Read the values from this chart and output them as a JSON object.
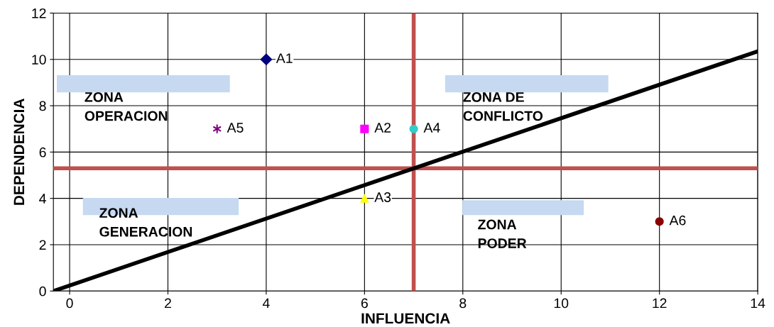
{
  "chart_data": {
    "type": "scatter",
    "xlabel": "INFLUENCIA",
    "ylabel": "DEPENDENCIA",
    "xlim": [
      -0.33,
      14
    ],
    "xticks": [
      0,
      2,
      4,
      6,
      8,
      10,
      12,
      14
    ],
    "ylim": [
      0,
      12
    ],
    "yticks": [
      0,
      2,
      4,
      6,
      8,
      10,
      12
    ],
    "grid": true,
    "legend": false,
    "series": [
      {
        "name": "A1",
        "color": "#000080",
        "marker": "diamond",
        "x": [
          4
        ],
        "values": [
          10
        ]
      },
      {
        "name": "A2",
        "color": "#ff00ff",
        "marker": "square",
        "x": [
          6
        ],
        "values": [
          7
        ]
      },
      {
        "name": "A3",
        "color": "#ffff00",
        "marker": "triangle",
        "x": [
          6
        ],
        "values": [
          4
        ]
      },
      {
        "name": "A4",
        "color": "#33cccc",
        "marker": "circle",
        "x": [
          7
        ],
        "values": [
          7
        ]
      },
      {
        "name": "A5",
        "color": "#800080",
        "marker": "cross",
        "x": [
          3
        ],
        "values": [
          7
        ]
      },
      {
        "name": "A6",
        "color": "#8b0000",
        "marker": "circle",
        "x": [
          12
        ],
        "values": [
          3
        ]
      },
      {
        "type": "line",
        "color": "#000000",
        "marker": "none",
        "x": [
          -0.33,
          14
        ],
        "values": [
          0,
          10.35
        ]
      }
    ],
    "ref_lines": [
      {
        "axis": "x",
        "value": 7,
        "color": "#c0504d"
      },
      {
        "axis": "y",
        "value": 5.3,
        "color": "#c0504d"
      }
    ],
    "annotations": [
      "ZONA\nOPERACION",
      "ZONA DE\nCONFLICTO",
      "ZONA\nGENERACION",
      "ZONA\nPODER"
    ]
  }
}
